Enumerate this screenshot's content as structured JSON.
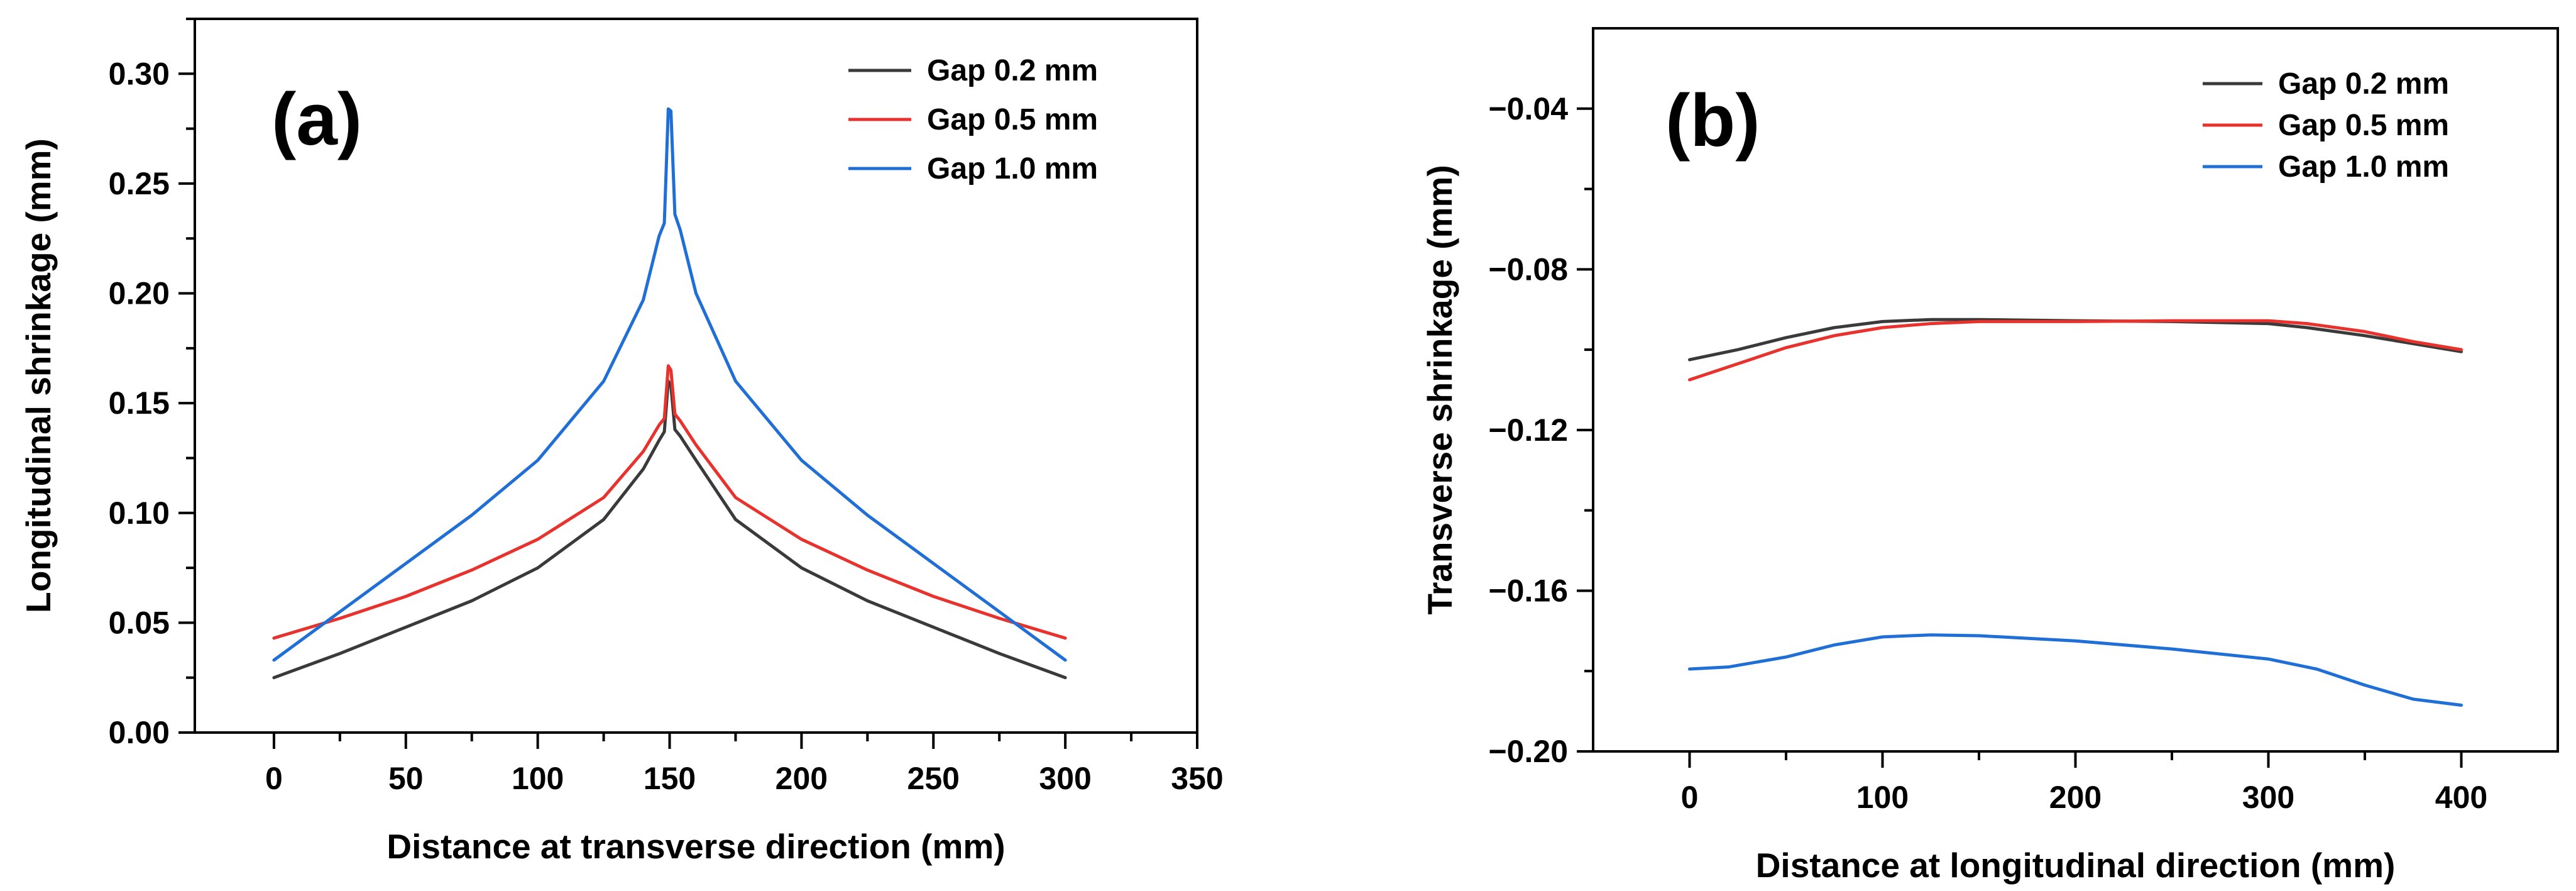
{
  "chart_data": [
    {
      "panel": "(a)",
      "type": "line",
      "title": "",
      "xlabel": "Distance at transverse direction (mm)",
      "ylabel": "Longitudinal shrinkage (mm)",
      "xlim": [
        -30,
        350
      ],
      "ylim": [
        0.0,
        0.325
      ],
      "xticks": [
        0,
        50,
        100,
        150,
        200,
        250,
        300,
        350
      ],
      "yticks": [
        0.0,
        0.05,
        0.1,
        0.15,
        0.2,
        0.25,
        0.3
      ],
      "xtick_labels": [
        "0",
        "50",
        "100",
        "150",
        "200",
        "250",
        "300",
        "350"
      ],
      "ytick_labels": [
        "0.00",
        "0.05",
        "0.10",
        "0.15",
        "0.20",
        "0.25",
        "0.30"
      ],
      "grid": false,
      "legend_position": "top-right",
      "series": [
        {
          "name": "Gap 0.2 mm",
          "color": "#3a3a3a",
          "x": [
            0,
            25,
            50,
            75,
            100,
            125,
            140,
            146,
            148,
            149.5,
            150.5,
            152,
            154,
            160,
            175,
            200,
            225,
            250,
            275,
            300
          ],
          "y": [
            0.025,
            0.036,
            0.048,
            0.06,
            0.075,
            0.097,
            0.12,
            0.133,
            0.137,
            0.16,
            0.158,
            0.138,
            0.135,
            0.124,
            0.097,
            0.075,
            0.06,
            0.048,
            0.036,
            0.025
          ]
        },
        {
          "name": "Gap 0.5 mm",
          "color": "#e8322d",
          "x": [
            0,
            25,
            50,
            75,
            100,
            125,
            140,
            146,
            148,
            149.5,
            150.5,
            152,
            154,
            160,
            175,
            200,
            225,
            250,
            275,
            300
          ],
          "y": [
            0.043,
            0.052,
            0.062,
            0.074,
            0.088,
            0.107,
            0.128,
            0.14,
            0.143,
            0.167,
            0.165,
            0.145,
            0.142,
            0.131,
            0.107,
            0.088,
            0.074,
            0.062,
            0.052,
            0.043
          ]
        },
        {
          "name": "Gap 1.0 mm",
          "color": "#1f6fd6",
          "x": [
            0,
            25,
            50,
            75,
            100,
            125,
            140,
            146,
            148,
            149.5,
            150.5,
            152,
            154,
            160,
            175,
            200,
            225,
            250,
            275,
            300
          ],
          "y": [
            0.033,
            0.055,
            0.077,
            0.099,
            0.124,
            0.16,
            0.197,
            0.226,
            0.232,
            0.284,
            0.283,
            0.236,
            0.229,
            0.2,
            0.16,
            0.124,
            0.099,
            0.077,
            0.055,
            0.033
          ]
        }
      ]
    },
    {
      "panel": "(b)",
      "type": "line",
      "title": "",
      "xlabel": "Distance at longitudinal direction (mm)",
      "ylabel": "Transverse shrinkage (mm)",
      "xlim": [
        -50,
        450
      ],
      "ylim": [
        -0.2,
        -0.02
      ],
      "xticks": [
        0,
        100,
        200,
        300,
        400
      ],
      "yticks": [
        -0.2,
        -0.16,
        -0.12,
        -0.08,
        -0.04
      ],
      "xtick_labels": [
        "0",
        "100",
        "200",
        "300",
        "400"
      ],
      "ytick_labels": [
        "−0.20",
        "−0.16",
        "−0.12",
        "−0.08",
        "−0.04"
      ],
      "grid": false,
      "legend_position": "top-right",
      "series": [
        {
          "name": "Gap 0.2 mm",
          "color": "#3a3a3a",
          "x": [
            0,
            25,
            50,
            75,
            100,
            125,
            150,
            200,
            250,
            300,
            320,
            350,
            375,
            400
          ],
          "y": [
            -0.1025,
            -0.1,
            -0.097,
            -0.0945,
            -0.093,
            -0.0925,
            -0.0925,
            -0.0928,
            -0.093,
            -0.0935,
            -0.0945,
            -0.0965,
            -0.0985,
            -0.1005
          ]
        },
        {
          "name": "Gap 0.5 mm",
          "color": "#e8322d",
          "x": [
            0,
            25,
            50,
            75,
            100,
            125,
            150,
            200,
            250,
            300,
            320,
            350,
            375,
            400
          ],
          "y": [
            -0.1075,
            -0.1035,
            -0.0995,
            -0.0965,
            -0.0945,
            -0.0935,
            -0.093,
            -0.093,
            -0.0928,
            -0.0928,
            -0.0935,
            -0.0955,
            -0.098,
            -0.1
          ]
        },
        {
          "name": "Gap 1.0 mm",
          "color": "#1f6fd6",
          "x": [
            0,
            20,
            50,
            75,
            100,
            125,
            150,
            200,
            250,
            300,
            325,
            350,
            375,
            400
          ],
          "y": [
            -0.1795,
            -0.179,
            -0.1765,
            -0.1735,
            -0.1715,
            -0.171,
            -0.1712,
            -0.1725,
            -0.1745,
            -0.177,
            -0.1795,
            -0.1835,
            -0.187,
            -0.1885
          ]
        }
      ]
    }
  ]
}
